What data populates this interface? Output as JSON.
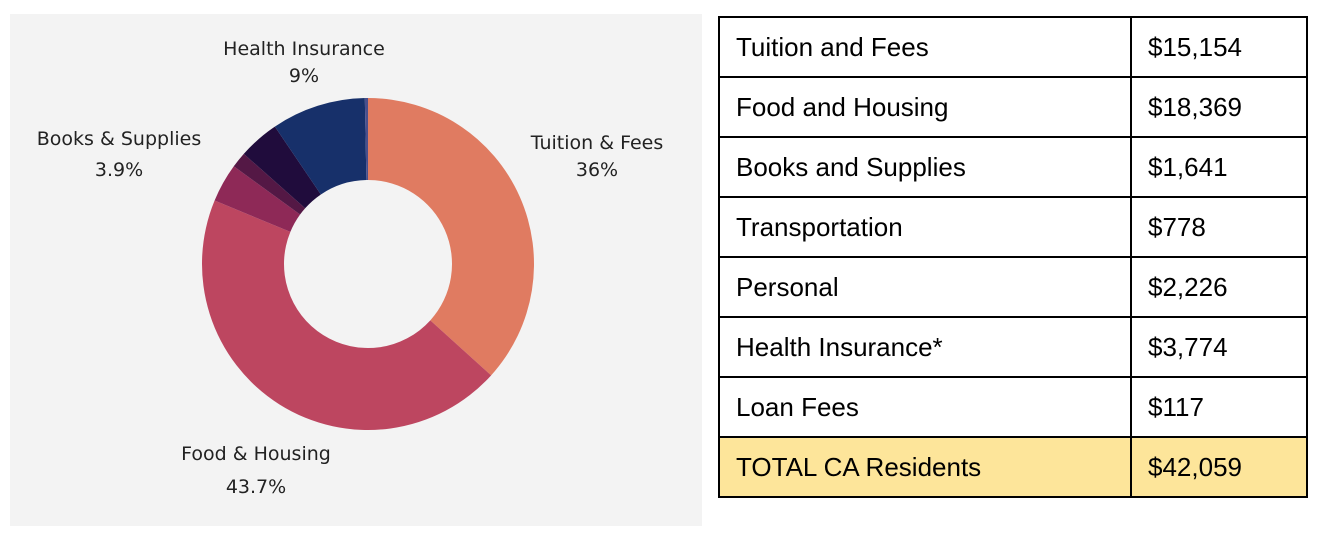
{
  "chart_data": {
    "type": "pie",
    "donut": true,
    "slices": [
      {
        "label": "Tuition & Fees",
        "value": 36,
        "display": "36%",
        "color": "#e07b61"
      },
      {
        "label": "Food & Housing",
        "value": 43.7,
        "display": "43.7%",
        "color": "#bd4660"
      },
      {
        "label": "",
        "value": 3.7,
        "display": "",
        "color": "#8e2957"
      },
      {
        "label": "",
        "value": 1.5,
        "display": "",
        "color": "#541845"
      },
      {
        "label": "Books & Supplies",
        "value": 3.9,
        "display": "3.9%",
        "color": "#200c3c"
      },
      {
        "label": "Health Insurance",
        "value": 9,
        "display": "9%",
        "color": "#17306a"
      },
      {
        "label": "",
        "value": 0.3,
        "display": "",
        "color": "#4a4f8c"
      }
    ]
  },
  "table": {
    "rows": [
      {
        "label": "Tuition and Fees",
        "value": "$15,154"
      },
      {
        "label": "Food and Housing",
        "value": "$18,369"
      },
      {
        "label": "Books and Supplies",
        "value": "$1,641"
      },
      {
        "label": "Transportation",
        "value": "$778"
      },
      {
        "label": "Personal",
        "value": "$2,226"
      },
      {
        "label": "Health Insurance*",
        "value": "$3,774"
      },
      {
        "label": "Loan Fees",
        "value": "$117"
      }
    ],
    "total": {
      "label": "TOTAL CA Residents",
      "value": "$42,059"
    },
    "total_color": "#fde59a"
  }
}
